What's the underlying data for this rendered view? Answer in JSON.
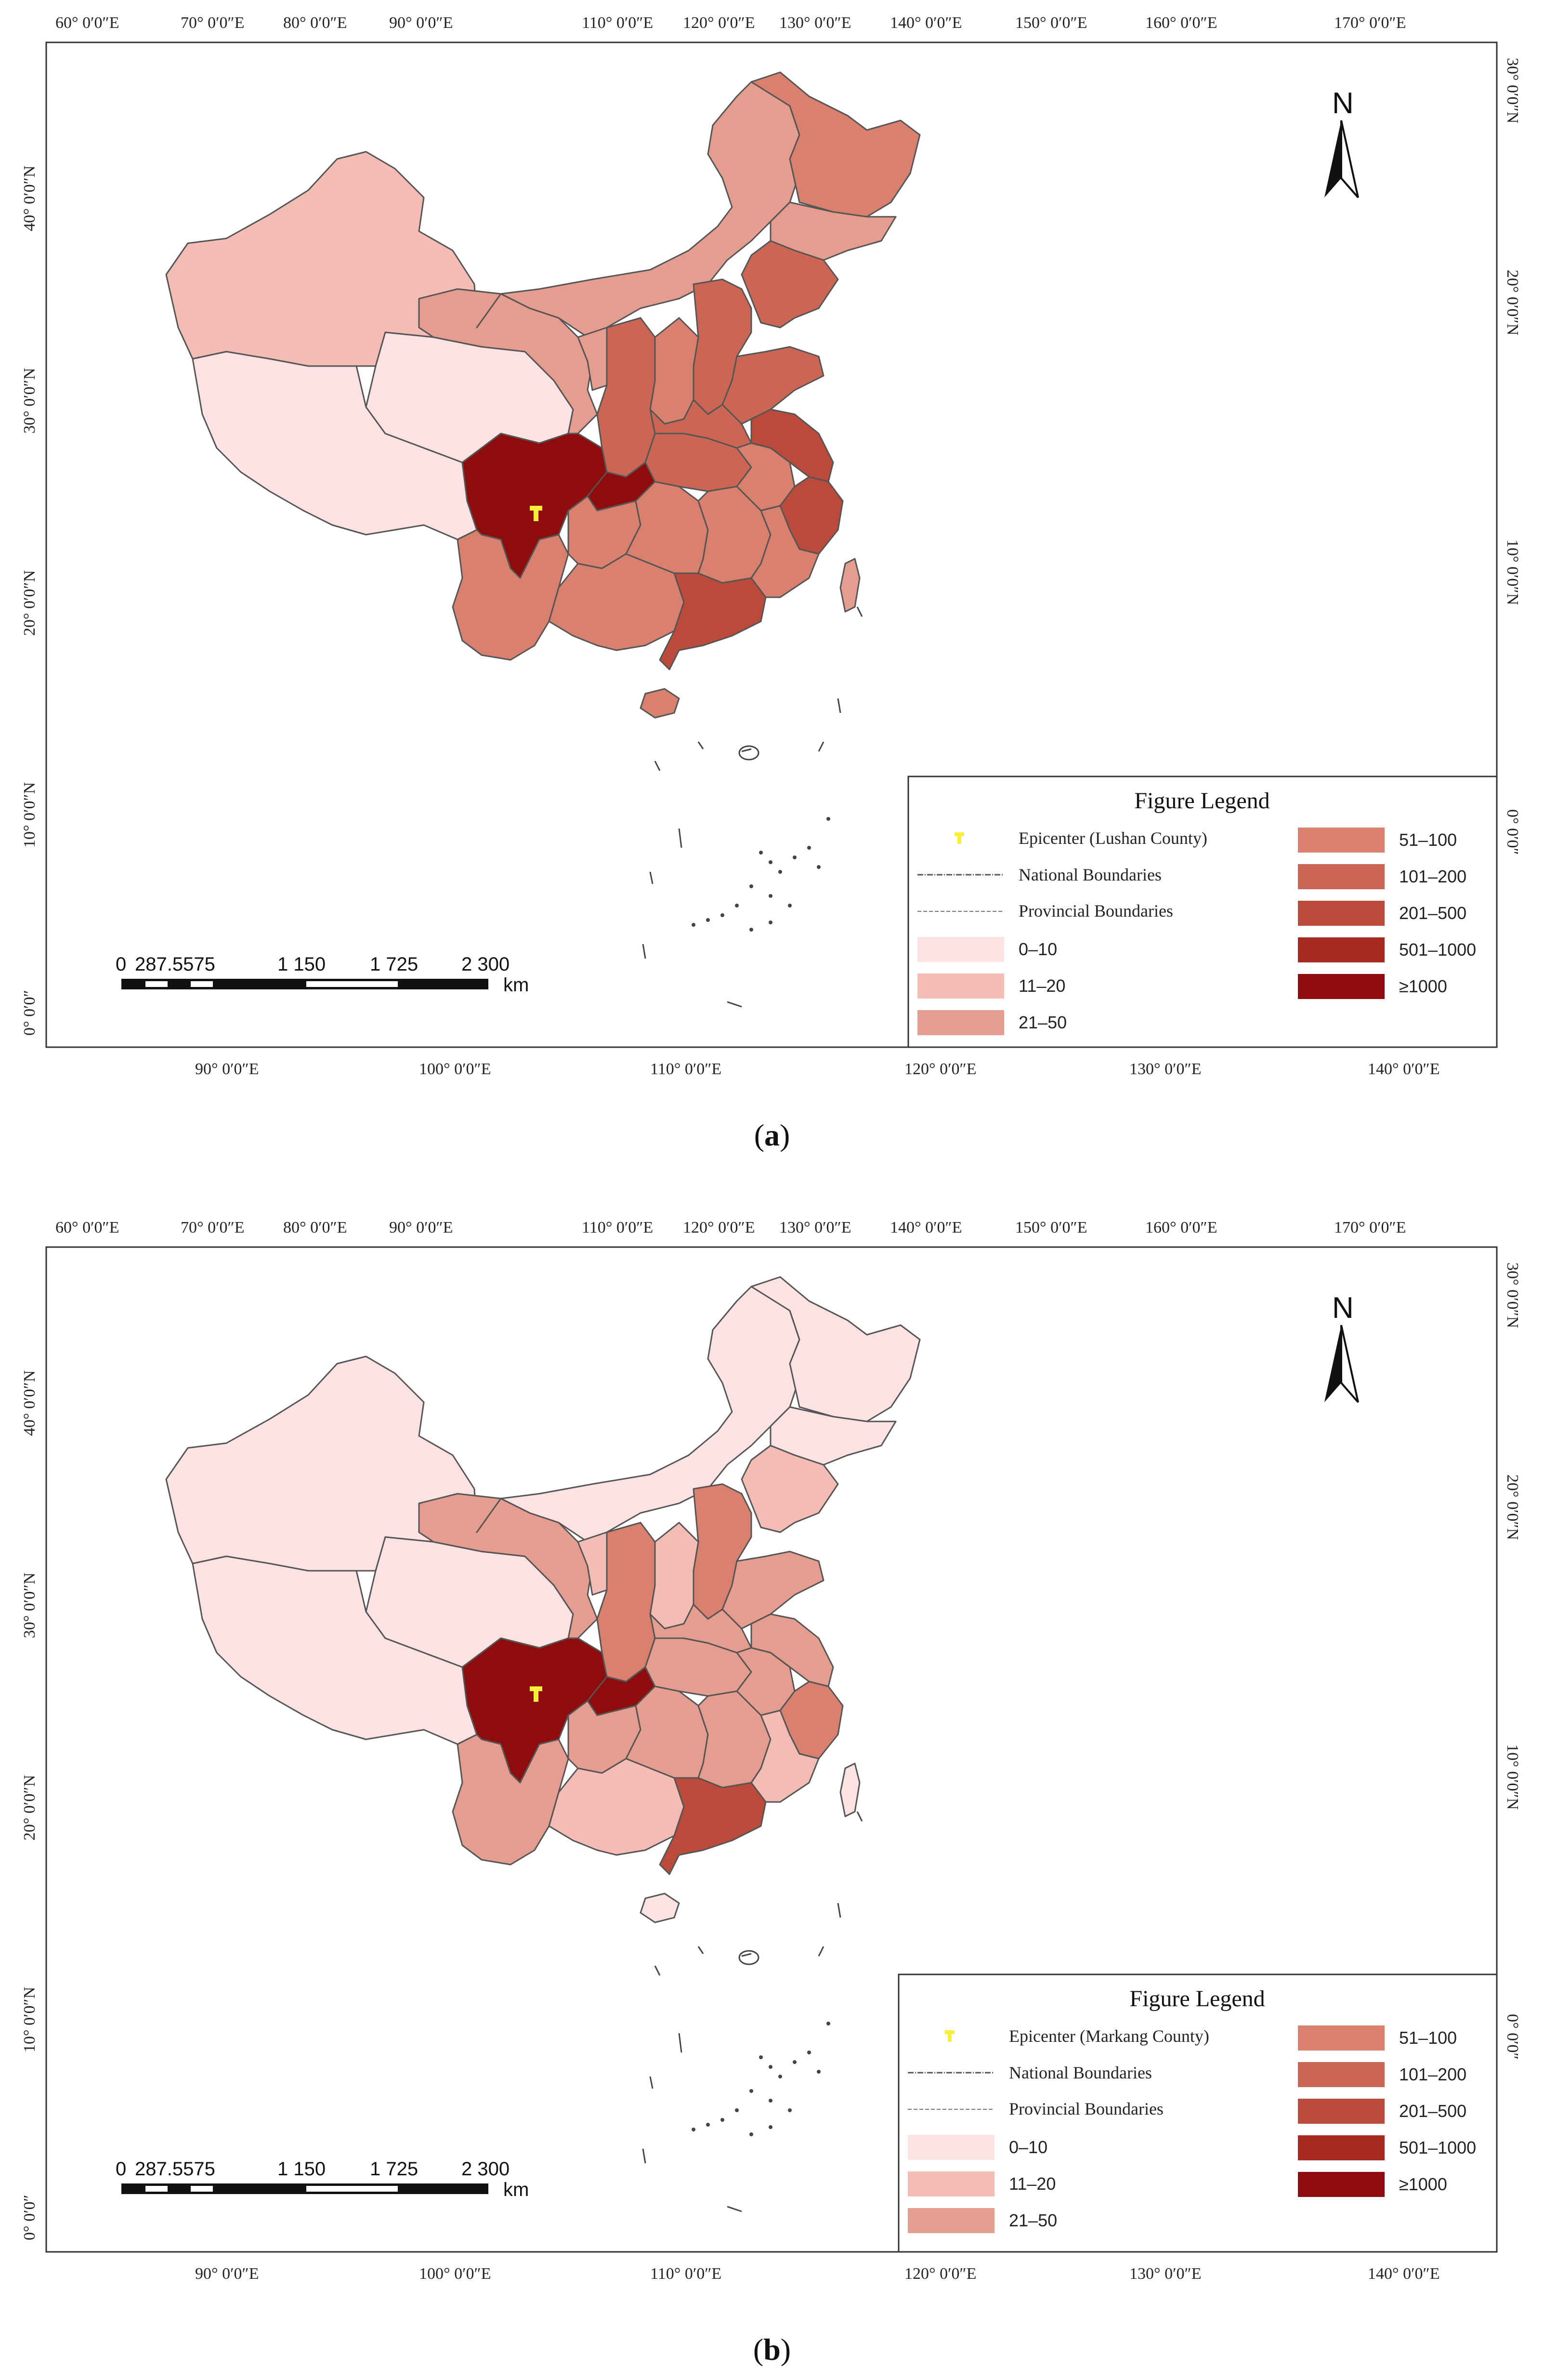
{
  "colors": {
    "c0_10": "#fce2e2",
    "c11_20": "#f3bcb4",
    "c21_50": "#e49d8f",
    "c51_100": "#d9806f",
    "c101_200": "#cc6654",
    "c201_500": "#bb4a3a",
    "c501_1000": "#a62a1f",
    "c1000": "#8e0c0c",
    "epicenter": "#f7ef3a",
    "border": "#555555"
  },
  "axis": {
    "top_ticks": [
      "60° 0′0″E",
      "70° 0′0″E",
      "80° 0′0″E",
      "90° 0′0″E",
      "110° 0′0″E",
      "120° 0′0″E",
      "130° 0′0″E",
      "140° 0′0″E",
      "150° 0′0″E",
      "160° 0′0″E",
      "170° 0′0″E"
    ],
    "bottom_ticks": [
      "90° 0′0″E",
      "100° 0′0″E",
      "110° 0′0″E",
      "120° 0′0″E",
      "130° 0′0″E",
      "140° 0′0″E"
    ],
    "left_ticks": [
      "40° 0′0″N",
      "30° 0′0″N",
      "20° 0′0″N",
      "10° 0′0″N",
      "0° 0′0″"
    ],
    "right_ticks": [
      "30° 0′0″N",
      "20° 0′0″N",
      "10° 0′0″N",
      "0° 0′0″"
    ]
  },
  "north_label": "N",
  "scale_bar": {
    "labels": [
      "0",
      "287.5575",
      "1 150",
      "1 725",
      "2 300"
    ],
    "unit": "km"
  },
  "legend_common": {
    "title": "Figure Legend",
    "national": "National Boundaries",
    "provincial": "Provincial Boundaries",
    "ranges": [
      "0–10",
      "11–20",
      "21–50",
      "51–100",
      "101–200",
      "201–500",
      "501–1000",
      "≥1000"
    ]
  },
  "panels": [
    {
      "label": "a",
      "epicenter_text": "Epicenter (Lushan County)",
      "region_classes": {
        "xinjiang": "c11_20",
        "tibet": "c0_10",
        "qinghai": "c0_10",
        "gansu": "c21_50",
        "inner_mongolia": "c21_50",
        "heilongjiang": "c51_100",
        "jilin": "c21_50",
        "liaoning": "c101_200",
        "beijing_hebei": "c101_200",
        "shanxi": "c51_100",
        "shaanxi": "c101_200",
        "ningxia": "c21_50",
        "sichuan": "c1000",
        "chongqing": "c1000",
        "yunnan": "c51_100",
        "guizhou": "c51_100",
        "guangxi": "c51_100",
        "guangdong": "c201_500",
        "hainan": "c51_100",
        "hunan": "c51_100",
        "hubei": "c101_200",
        "henan": "c101_200",
        "shandong": "c101_200",
        "jiangsu": "c201_500",
        "anhui": "c51_100",
        "zhejiang": "c201_500",
        "jiangxi": "c51_100",
        "fujian": "c51_100",
        "taiwan": "c21_50"
      }
    },
    {
      "label": "b",
      "epicenter_text": "Epicenter (Markang County)",
      "region_classes": {
        "xinjiang": "c0_10",
        "tibet": "c0_10",
        "qinghai": "c0_10",
        "gansu": "c21_50",
        "inner_mongolia": "c0_10",
        "heilongjiang": "c0_10",
        "jilin": "c0_10",
        "liaoning": "c11_20",
        "beijing_hebei": "c51_100",
        "shanxi": "c11_20",
        "shaanxi": "c51_100",
        "ningxia": "c11_20",
        "sichuan": "c1000",
        "chongqing": "c1000",
        "yunnan": "c21_50",
        "guizhou": "c21_50",
        "guangxi": "c11_20",
        "guangdong": "c201_500",
        "hainan": "c0_10",
        "hunan": "c21_50",
        "hubei": "c21_50",
        "henan": "c21_50",
        "shandong": "c21_50",
        "jiangsu": "c21_50",
        "anhui": "c21_50",
        "zhejiang": "c51_100",
        "jiangxi": "c21_50",
        "fujian": "c11_20",
        "taiwan": "c0_10"
      }
    }
  ]
}
